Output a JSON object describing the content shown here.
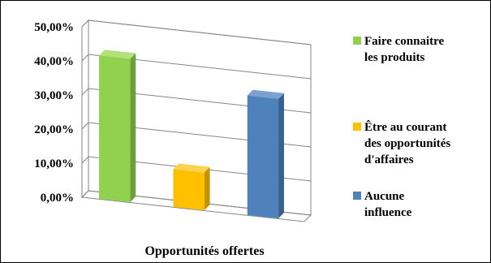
{
  "chart_data": {
    "type": "bar",
    "style": "3d-column",
    "categories": [
      "Faire connaitre les produits",
      "Être au courant des opportunités d'affaires",
      "Aucune influence"
    ],
    "series": [
      {
        "values": [
          42,
          11,
          35
        ]
      }
    ],
    "colors": [
      "#92d050",
      "#ffc000",
      "#4f81bd"
    ],
    "side_colors": [
      "#6f9f3a",
      "#c29200",
      "#3a6189"
    ],
    "top_colors": [
      "#b4e07c",
      "#ffd24d",
      "#7aa1d0"
    ],
    "legend": [
      {
        "lines": [
          "Faire connaitre",
          "les produits"
        ],
        "color": "#92d050"
      },
      {
        "lines": [
          "Être au courant",
          "des opportunités",
          "d'affaires"
        ],
        "color": "#ffc000"
      },
      {
        "lines": [
          "Aucune",
          "influence"
        ],
        "color": "#4f81bd"
      }
    ],
    "legend_position": "right",
    "y_ticks": [
      "0,00%",
      "10,00%",
      "20,00%",
      "30,00%",
      "40,00%",
      "50,00%"
    ],
    "ylim": [
      0,
      50
    ],
    "xlabel": "Opportunités offertes",
    "ylabel": "",
    "title": "",
    "grid": true
  }
}
